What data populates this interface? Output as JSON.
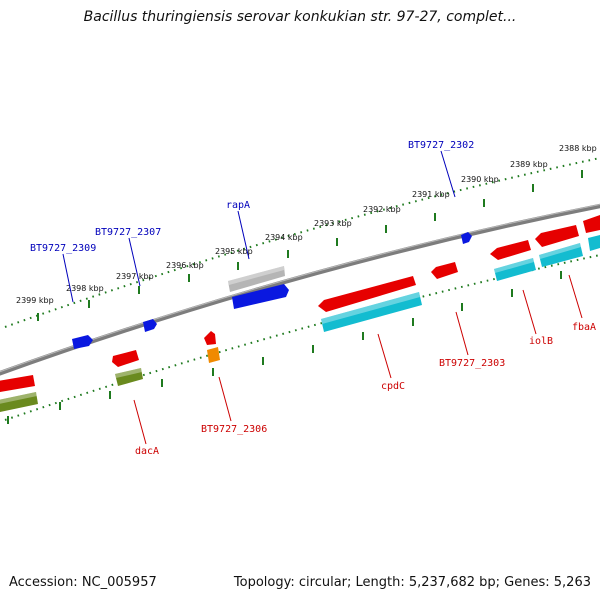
{
  "title": "Bacillus thuringiensis serovar konkukian str. 97-27, complet...",
  "footer": {
    "accession": "Accession: NC_005957",
    "topology": "Topology: circular; Length: 5,237,682 bp; Genes: 5,263"
  },
  "colors": {
    "backbone": "#8a8a8a",
    "tick_line": "#1f7a1f",
    "forward_gene_label": "#0000bb",
    "reverse_gene_label": "#cc0000",
    "gene_blue": "#0a18e0",
    "gene_red": "#e60000",
    "gene_grey": "#b5b5b5",
    "gene_cyan": "#13bcd0",
    "gene_olive": "#6a8a1e",
    "gene_orange": "#f08a00"
  },
  "scale_labels": [
    "2399 kbp",
    "2398 kbp",
    "2397 kbp",
    "2396 kbp",
    "2395 kbp",
    "2394 kbp",
    "2393 kbp",
    "2392 kbp",
    "2391 kbp",
    "2390 kbp",
    "2389 kbp",
    "2388 kbp"
  ],
  "forward_labels": [
    "BT9727_2309",
    "BT9727_2307",
    "rapA",
    "BT9727_2302"
  ],
  "reverse_labels": [
    "dacA",
    "BT9727_2306",
    "cpdC",
    "BT9727_2303",
    "iolB",
    "fbaA"
  ]
}
